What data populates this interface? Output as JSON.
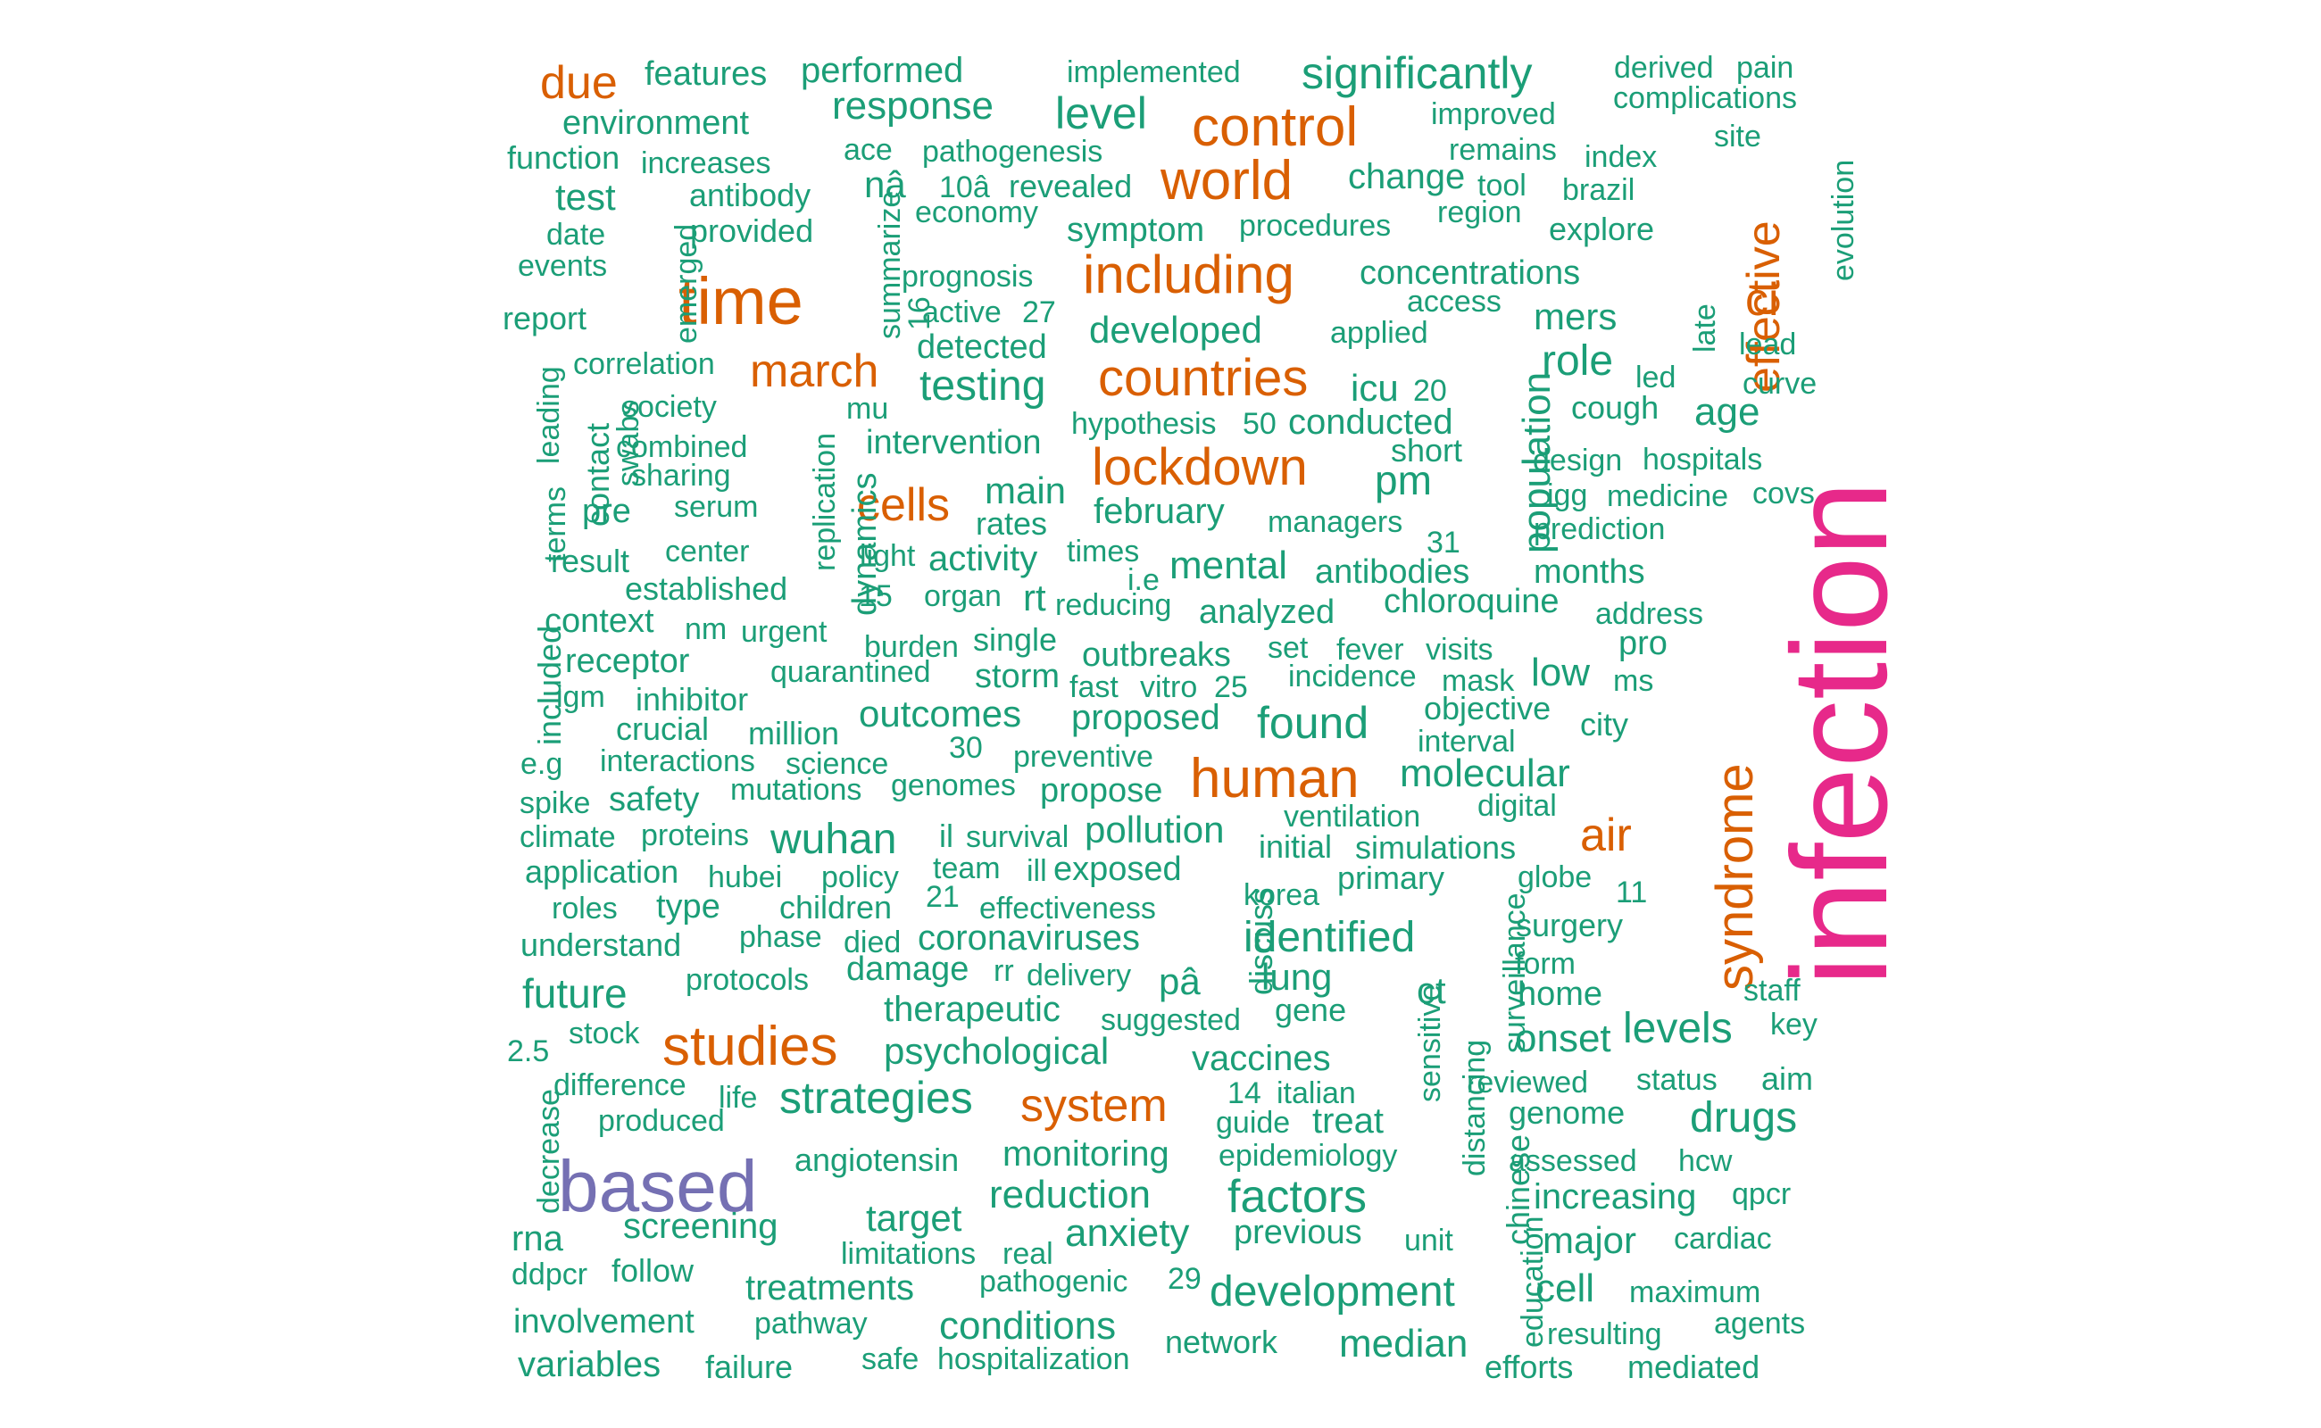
{
  "colors": {
    "tier1": "#e7298a",
    "tier2": "#7570b3",
    "tier3": "#d95f02",
    "tier4": "#1b9e77"
  },
  "words": [
    {
      "text": "infection",
      "color": "tier1",
      "rank": 1
    },
    {
      "text": "based",
      "color": "tier2",
      "rank": 2
    },
    {
      "text": "time",
      "color": "tier3",
      "rank": 3
    },
    {
      "text": "control",
      "color": "tier3",
      "rank": 3
    },
    {
      "text": "world",
      "color": "tier3",
      "rank": 3
    },
    {
      "text": "including",
      "color": "tier3",
      "rank": 3
    },
    {
      "text": "countries",
      "color": "tier3",
      "rank": 3
    },
    {
      "text": "lockdown",
      "color": "tier3",
      "rank": 3
    },
    {
      "text": "human",
      "color": "tier3",
      "rank": 3
    },
    {
      "text": "studies",
      "color": "tier3",
      "rank": 3
    },
    {
      "text": "syndrome",
      "color": "tier3",
      "rank": 3
    },
    {
      "text": "march",
      "color": "tier3",
      "rank": 3
    },
    {
      "text": "cells",
      "color": "tier3",
      "rank": 3
    },
    {
      "text": "system",
      "color": "tier3",
      "rank": 3
    },
    {
      "text": "air",
      "color": "tier3",
      "rank": 3
    },
    {
      "text": "effective",
      "color": "tier3",
      "rank": 3
    },
    {
      "text": "due",
      "color": "tier3",
      "rank": 3
    },
    {
      "text": "ci",
      "color": "tier3",
      "rank": 3
    },
    {
      "text": "significantly",
      "color": "tier4"
    },
    {
      "text": "features",
      "color": "tier4"
    },
    {
      "text": "performed",
      "color": "tier4"
    },
    {
      "text": "implemented",
      "color": "tier4"
    },
    {
      "text": "derived",
      "color": "tier4"
    },
    {
      "text": "pain",
      "color": "tier4"
    },
    {
      "text": "complications",
      "color": "tier4"
    },
    {
      "text": "environment",
      "color": "tier4"
    },
    {
      "text": "response",
      "color": "tier4"
    },
    {
      "text": "level",
      "color": "tier4"
    },
    {
      "text": "improved",
      "color": "tier4"
    },
    {
      "text": "function",
      "color": "tier4"
    },
    {
      "text": "increases",
      "color": "tier4"
    },
    {
      "text": "ace",
      "color": "tier4"
    },
    {
      "text": "pathogenesis",
      "color": "tier4"
    },
    {
      "text": "remains",
      "color": "tier4"
    },
    {
      "text": "index",
      "color": "tier4"
    },
    {
      "text": "site",
      "color": "tier4"
    },
    {
      "text": "test",
      "color": "tier4"
    },
    {
      "text": "antibody",
      "color": "tier4"
    },
    {
      "text": "nâ",
      "color": "tier4"
    },
    {
      "text": "10â",
      "color": "tier4"
    },
    {
      "text": "revealed",
      "color": "tier4"
    },
    {
      "text": "change",
      "color": "tier4"
    },
    {
      "text": "tool",
      "color": "tier4"
    },
    {
      "text": "brazil",
      "color": "tier4"
    },
    {
      "text": "economy",
      "color": "tier4"
    },
    {
      "text": "region",
      "color": "tier4"
    },
    {
      "text": "date",
      "color": "tier4"
    },
    {
      "text": "provided",
      "color": "tier4"
    },
    {
      "text": "symptom",
      "color": "tier4"
    },
    {
      "text": "procedures",
      "color": "tier4"
    },
    {
      "text": "explore",
      "color": "tier4"
    },
    {
      "text": "evolution",
      "color": "tier4"
    },
    {
      "text": "events",
      "color": "tier4"
    },
    {
      "text": "emerged",
      "color": "tier4"
    },
    {
      "text": "summarize",
      "color": "tier4"
    },
    {
      "text": "prognosis",
      "color": "tier4"
    },
    {
      "text": "concentrations",
      "color": "tier4"
    },
    {
      "text": "access",
      "color": "tier4"
    },
    {
      "text": "report",
      "color": "tier4"
    },
    {
      "text": "16",
      "color": "tier4"
    },
    {
      "text": "active",
      "color": "tier4"
    },
    {
      "text": "27",
      "color": "tier4"
    },
    {
      "text": "developed",
      "color": "tier4"
    },
    {
      "text": "applied",
      "color": "tier4"
    },
    {
      "text": "mers",
      "color": "tier4"
    },
    {
      "text": "late",
      "color": "tier4"
    },
    {
      "text": "lead",
      "color": "tier4"
    },
    {
      "text": "correlation",
      "color": "tier4"
    },
    {
      "text": "detected",
      "color": "tier4"
    },
    {
      "text": "population",
      "color": "tier4"
    },
    {
      "text": "role",
      "color": "tier4"
    },
    {
      "text": "led",
      "color": "tier4"
    },
    {
      "text": "curve",
      "color": "tier4"
    },
    {
      "text": "leading",
      "color": "tier4"
    },
    {
      "text": "society",
      "color": "tier4"
    },
    {
      "text": "mu",
      "color": "tier4"
    },
    {
      "text": "testing",
      "color": "tier4"
    },
    {
      "text": "icu",
      "color": "tier4"
    },
    {
      "text": "20",
      "color": "tier4"
    },
    {
      "text": "cough",
      "color": "tier4"
    },
    {
      "text": "age",
      "color": "tier4"
    },
    {
      "text": "swabs",
      "color": "tier4"
    },
    {
      "text": "hypothesis",
      "color": "tier4"
    },
    {
      "text": "50",
      "color": "tier4"
    },
    {
      "text": "conducted",
      "color": "tier4"
    },
    {
      "text": "combined",
      "color": "tier4"
    },
    {
      "text": "intervention",
      "color": "tier4"
    },
    {
      "text": "short",
      "color": "tier4"
    },
    {
      "text": "design",
      "color": "tier4"
    },
    {
      "text": "hospitals",
      "color": "tier4"
    },
    {
      "text": "contact",
      "color": "tier4"
    },
    {
      "text": "sharing",
      "color": "tier4"
    },
    {
      "text": "replication",
      "color": "tier4"
    },
    {
      "text": "main",
      "color": "tier4"
    },
    {
      "text": "pm",
      "color": "tier4"
    },
    {
      "text": "igg",
      "color": "tier4"
    },
    {
      "text": "medicine",
      "color": "tier4"
    },
    {
      "text": "covs",
      "color": "tier4"
    },
    {
      "text": "terms",
      "color": "tier4"
    },
    {
      "text": "pre",
      "color": "tier4"
    },
    {
      "text": "serum",
      "color": "tier4"
    },
    {
      "text": "rates",
      "color": "tier4"
    },
    {
      "text": "february",
      "color": "tier4"
    },
    {
      "text": "managers",
      "color": "tier4"
    },
    {
      "text": "prediction",
      "color": "tier4"
    },
    {
      "text": "dynamics",
      "color": "tier4"
    },
    {
      "text": "center",
      "color": "tier4"
    },
    {
      "text": "light",
      "color": "tier4"
    },
    {
      "text": "activity",
      "color": "tier4"
    },
    {
      "text": "times",
      "color": "tier4"
    },
    {
      "text": "31",
      "color": "tier4"
    },
    {
      "text": "result",
      "color": "tier4"
    },
    {
      "text": "i.e",
      "color": "tier4"
    },
    {
      "text": "mental",
      "color": "tier4"
    },
    {
      "text": "antibodies",
      "color": "tier4"
    },
    {
      "text": "months",
      "color": "tier4"
    },
    {
      "text": "established",
      "color": "tier4"
    },
    {
      "text": "15",
      "color": "tier4"
    },
    {
      "text": "organ",
      "color": "tier4"
    },
    {
      "text": "rt",
      "color": "tier4"
    },
    {
      "text": "reducing",
      "color": "tier4"
    },
    {
      "text": "analyzed",
      "color": "tier4"
    },
    {
      "text": "chloroquine",
      "color": "tier4"
    },
    {
      "text": "address",
      "color": "tier4"
    },
    {
      "text": "context",
      "color": "tier4"
    },
    {
      "text": "nm",
      "color": "tier4"
    },
    {
      "text": "urgent",
      "color": "tier4"
    },
    {
      "text": "included",
      "color": "tier4"
    },
    {
      "text": "burden",
      "color": "tier4"
    },
    {
      "text": "single",
      "color": "tier4"
    },
    {
      "text": "outbreaks",
      "color": "tier4"
    },
    {
      "text": "set",
      "color": "tier4"
    },
    {
      "text": "fever",
      "color": "tier4"
    },
    {
      "text": "visits",
      "color": "tier4"
    },
    {
      "text": "pro",
      "color": "tier4"
    },
    {
      "text": "receptor",
      "color": "tier4"
    },
    {
      "text": "quarantined",
      "color": "tier4"
    },
    {
      "text": "storm",
      "color": "tier4"
    },
    {
      "text": "incidence",
      "color": "tier4"
    },
    {
      "text": "mask",
      "color": "tier4"
    },
    {
      "text": "low",
      "color": "tier4"
    },
    {
      "text": "ms",
      "color": "tier4"
    },
    {
      "text": "igm",
      "color": "tier4"
    },
    {
      "text": "inhibitor",
      "color": "tier4"
    },
    {
      "text": "fast",
      "color": "tier4"
    },
    {
      "text": "vitro",
      "color": "tier4"
    },
    {
      "text": "25",
      "color": "tier4"
    },
    {
      "text": "objective",
      "color": "tier4"
    },
    {
      "text": "crucial",
      "color": "tier4"
    },
    {
      "text": "million",
      "color": "tier4"
    },
    {
      "text": "outcomes",
      "color": "tier4"
    },
    {
      "text": "proposed",
      "color": "tier4"
    },
    {
      "text": "found",
      "color": "tier4"
    },
    {
      "text": "city",
      "color": "tier4"
    },
    {
      "text": "30",
      "color": "tier4"
    },
    {
      "text": "interval",
      "color": "tier4"
    },
    {
      "text": "e.g",
      "color": "tier4"
    },
    {
      "text": "interactions",
      "color": "tier4"
    },
    {
      "text": "science",
      "color": "tier4"
    },
    {
      "text": "preventive",
      "color": "tier4"
    },
    {
      "text": "molecular",
      "color": "tier4"
    },
    {
      "text": "mutations",
      "color": "tier4"
    },
    {
      "text": "genomes",
      "color": "tier4"
    },
    {
      "text": "propose",
      "color": "tier4"
    },
    {
      "text": "spike",
      "color": "tier4"
    },
    {
      "text": "safety",
      "color": "tier4"
    },
    {
      "text": "digital",
      "color": "tier4"
    },
    {
      "text": "ventilation",
      "color": "tier4"
    },
    {
      "text": "climate",
      "color": "tier4"
    },
    {
      "text": "proteins",
      "color": "tier4"
    },
    {
      "text": "wuhan",
      "color": "tier4"
    },
    {
      "text": "il",
      "color": "tier4"
    },
    {
      "text": "survival",
      "color": "tier4"
    },
    {
      "text": "pollution",
      "color": "tier4"
    },
    {
      "text": "initial",
      "color": "tier4"
    },
    {
      "text": "simulations",
      "color": "tier4"
    },
    {
      "text": "application",
      "color": "tier4"
    },
    {
      "text": "hubei",
      "color": "tier4"
    },
    {
      "text": "policy",
      "color": "tier4"
    },
    {
      "text": "team",
      "color": "tier4"
    },
    {
      "text": "ill",
      "color": "tier4"
    },
    {
      "text": "exposed",
      "color": "tier4"
    },
    {
      "text": "globe",
      "color": "tier4"
    },
    {
      "text": "discuss",
      "color": "tier4"
    },
    {
      "text": "primary",
      "color": "tier4"
    },
    {
      "text": "roles",
      "color": "tier4"
    },
    {
      "text": "type",
      "color": "tier4"
    },
    {
      "text": "children",
      "color": "tier4"
    },
    {
      "text": "21",
      "color": "tier4"
    },
    {
      "text": "effectiveness",
      "color": "tier4"
    },
    {
      "text": "korea",
      "color": "tier4"
    },
    {
      "text": "11",
      "color": "tier4"
    },
    {
      "text": "surgery",
      "color": "tier4"
    },
    {
      "text": "surveillance",
      "color": "tier4"
    },
    {
      "text": "understand",
      "color": "tier4"
    },
    {
      "text": "phase",
      "color": "tier4"
    },
    {
      "text": "died",
      "color": "tier4"
    },
    {
      "text": "coronaviruses",
      "color": "tier4"
    },
    {
      "text": "identified",
      "color": "tier4"
    },
    {
      "text": "form",
      "color": "tier4"
    },
    {
      "text": "future",
      "color": "tier4"
    },
    {
      "text": "protocols",
      "color": "tier4"
    },
    {
      "text": "damage",
      "color": "tier4"
    },
    {
      "text": "rr",
      "color": "tier4"
    },
    {
      "text": "delivery",
      "color": "tier4"
    },
    {
      "text": "pâ",
      "color": "tier4"
    },
    {
      "text": "lung",
      "color": "tier4"
    },
    {
      "text": "ct",
      "color": "tier4"
    },
    {
      "text": "home",
      "color": "tier4"
    },
    {
      "text": "staff",
      "color": "tier4"
    },
    {
      "text": "sensitive",
      "color": "tier4"
    },
    {
      "text": "therapeutic",
      "color": "tier4"
    },
    {
      "text": "suggested",
      "color": "tier4"
    },
    {
      "text": "gene",
      "color": "tier4"
    },
    {
      "text": "key",
      "color": "tier4"
    },
    {
      "text": "stock",
      "color": "tier4"
    },
    {
      "text": "onset",
      "color": "tier4"
    },
    {
      "text": "levels",
      "color": "tier4"
    },
    {
      "text": "2.5",
      "color": "tier4"
    },
    {
      "text": "psychological",
      "color": "tier4"
    },
    {
      "text": "vaccines",
      "color": "tier4"
    },
    {
      "text": "distancing",
      "color": "tier4"
    },
    {
      "text": "difference",
      "color": "tier4"
    },
    {
      "text": "reviewed",
      "color": "tier4"
    },
    {
      "text": "status",
      "color": "tier4"
    },
    {
      "text": "aim",
      "color": "tier4"
    },
    {
      "text": "life",
      "color": "tier4"
    },
    {
      "text": "strategies",
      "color": "tier4"
    },
    {
      "text": "14",
      "color": "tier4"
    },
    {
      "text": "italian",
      "color": "tier4"
    },
    {
      "text": "produced",
      "color": "tier4"
    },
    {
      "text": "guide",
      "color": "tier4"
    },
    {
      "text": "treat",
      "color": "tier4"
    },
    {
      "text": "genome",
      "color": "tier4"
    },
    {
      "text": "drugs",
      "color": "tier4"
    },
    {
      "text": "decrease",
      "color": "tier4"
    },
    {
      "text": "monitoring",
      "color": "tier4"
    },
    {
      "text": "chinese",
      "color": "tier4"
    },
    {
      "text": "angiotensin",
      "color": "tier4"
    },
    {
      "text": "epidemiology",
      "color": "tier4"
    },
    {
      "text": "assessed",
      "color": "tier4"
    },
    {
      "text": "hcw",
      "color": "tier4"
    },
    {
      "text": "reduction",
      "color": "tier4"
    },
    {
      "text": "factors",
      "color": "tier4"
    },
    {
      "text": "increasing",
      "color": "tier4"
    },
    {
      "text": "qpcr",
      "color": "tier4"
    },
    {
      "text": "target",
      "color": "tier4"
    },
    {
      "text": "rna",
      "color": "tier4"
    },
    {
      "text": "screening",
      "color": "tier4"
    },
    {
      "text": "anxiety",
      "color": "tier4"
    },
    {
      "text": "previous",
      "color": "tier4"
    },
    {
      "text": "unit",
      "color": "tier4"
    },
    {
      "text": "major",
      "color": "tier4"
    },
    {
      "text": "cardiac",
      "color": "tier4"
    },
    {
      "text": "limitations",
      "color": "tier4"
    },
    {
      "text": "real",
      "color": "tier4"
    },
    {
      "text": "education",
      "color": "tier4"
    },
    {
      "text": "ddpcr",
      "color": "tier4"
    },
    {
      "text": "follow",
      "color": "tier4"
    },
    {
      "text": "pathogenic",
      "color": "tier4"
    },
    {
      "text": "29",
      "color": "tier4"
    },
    {
      "text": "treatments",
      "color": "tier4"
    },
    {
      "text": "development",
      "color": "tier4"
    },
    {
      "text": "cell",
      "color": "tier4"
    },
    {
      "text": "maximum",
      "color": "tier4"
    },
    {
      "text": "involvement",
      "color": "tier4"
    },
    {
      "text": "pathway",
      "color": "tier4"
    },
    {
      "text": "conditions",
      "color": "tier4"
    },
    {
      "text": "resulting",
      "color": "tier4"
    },
    {
      "text": "agents",
      "color": "tier4"
    },
    {
      "text": "network",
      "color": "tier4"
    },
    {
      "text": "median",
      "color": "tier4"
    },
    {
      "text": "variables",
      "color": "tier4"
    },
    {
      "text": "failure",
      "color": "tier4"
    },
    {
      "text": "safe",
      "color": "tier4"
    },
    {
      "text": "hospitalization",
      "color": "tier4"
    },
    {
      "text": "efforts",
      "color": "tier4"
    },
    {
      "text": "mediated",
      "color": "tier4"
    }
  ]
}
